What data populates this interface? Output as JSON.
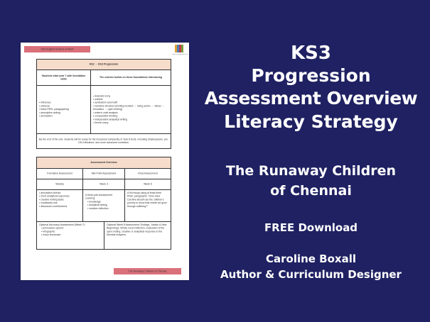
{
  "document": {
    "header_label": "KS3 English Scheme of Work",
    "logo_caption": "www.carolineboxall.com",
    "progression_table": {
      "title": "KS2 → KS3 Progression",
      "col1_header": "Students start year 7 with foundation skills",
      "col2_header": "The scheme builds on these foundations introducing",
      "col1_items": [
        "inference",
        "retrieval",
        "basic PEEL paragraphing",
        "descriptive writing",
        "annotation"
      ],
      "col2_items": [
        "dramatic irony",
        "subtext",
        "symbolism and motif",
        "narrative structure (inciting incident → rising action → climax → resolution → open ending)",
        "writer's craft analysis",
        "comparative thinking",
        "independent analytical writing",
        "formal oracy"
      ],
      "footer": "By the end of the unit, students will be ready for the increased complexity of Year 8 texts, including Shakespeare, pre-1914 literature, and more advanced nonfiction."
    },
    "assessment_table": {
      "title": "Assessment Overview",
      "columns": [
        "Formative Assessment",
        "Mid-Point Assessment",
        "Final Assessment"
      ],
      "timing": [
        "Weekly",
        "Week 3",
        "Week 6"
      ],
      "formative_items": [
        "annotation checks",
        "short analytical responses",
        "creative writing tasks",
        "vocabulary use",
        "discussion contributions"
      ],
      "midpoint_intro": "A three-part assessment covering:",
      "midpoint_items": [
        "knowledge",
        "analytical writing",
        "creative reflection"
      ],
      "final_text": "A full essay using at least three PEEL paragraphs: \"How does Caroline Boxall use the children's journey to show that reside we grow through suffering?\"",
      "optional1_title": "Optional Advocacy Assessment (Week 7):",
      "optional1_items": [
        "persuasive speech",
        "infographic",
        "oracy showcase"
      ],
      "optional2_text": "Optional Week 8 Assessment: Endings, Justice & New Beginnings. Whole novel reflection, evaluation of the open ending, creative or analytical response to the Mumbai chapters."
    },
    "footer_label": "The Runaway Children of Chennai"
  },
  "promo": {
    "line1": "KS3",
    "line2": "Progression",
    "line3": "Assessment Overview",
    "line4": "Literacy Strategy",
    "book_line1": "The Runaway Children",
    "book_line2": "of Chennai",
    "offer": "FREE Download",
    "author": "Caroline Boxall",
    "author_role": "Author & Curriculum Designer"
  },
  "colors": {
    "background": "#1f2162",
    "accent_pink": "#d9707a",
    "table_header": "#f6dccb"
  }
}
